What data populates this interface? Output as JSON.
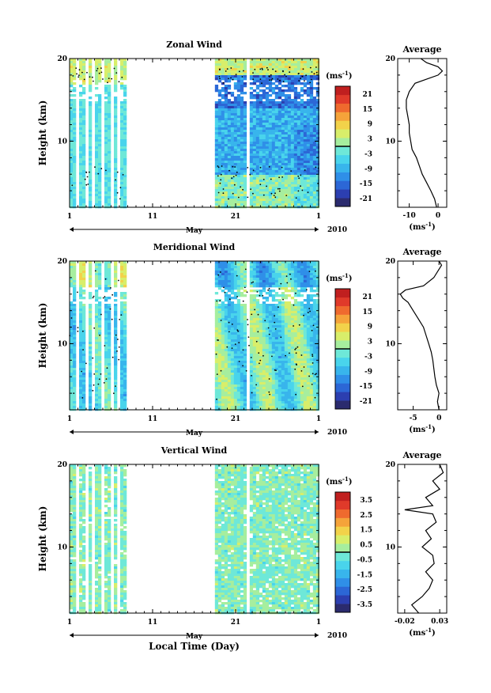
{
  "chart_data": [
    {
      "type": "heatmap",
      "title": "Zonal Wind",
      "ylabel": "Height (km)",
      "y_ticks": [
        "10",
        "20"
      ],
      "ylim": [
        2,
        20
      ],
      "x_ticks": [
        "1",
        "11",
        "21",
        "1"
      ],
      "x_label": "May",
      "year_label": "2010",
      "colorbar": {
        "unit": "(ms",
        "unit_exp": "-1",
        "unit_end": ")",
        "ticks": [
          "21",
          "15",
          "9",
          "3",
          "-3",
          "-9",
          "-15",
          "-21"
        ],
        "range": [
          -24,
          24
        ]
      },
      "sampled_periods_days": [
        [
          1,
          7.5
        ],
        [
          18.5,
          31
        ]
      ],
      "profile": {
        "title": "Average",
        "x_ticks": [
          "-10",
          "0"
        ],
        "xlim": [
          -14,
          3
        ],
        "unit": "(ms",
        "unit_exp": "-1",
        "unit_end": ")",
        "points": [
          [
            -0.5,
            2
          ],
          [
            -1.2,
            3
          ],
          [
            -2.5,
            4
          ],
          [
            -4,
            5
          ],
          [
            -5.5,
            6
          ],
          [
            -6.5,
            7
          ],
          [
            -7.5,
            8
          ],
          [
            -9,
            9
          ],
          [
            -9.5,
            10
          ],
          [
            -10,
            11
          ],
          [
            -10,
            12
          ],
          [
            -10.5,
            13
          ],
          [
            -11,
            14
          ],
          [
            -11,
            15
          ],
          [
            -10.5,
            15.5
          ],
          [
            -10,
            16
          ],
          [
            -8,
            17
          ],
          [
            -4,
            17.5
          ],
          [
            0,
            18
          ],
          [
            1.5,
            18.5
          ],
          [
            0,
            19
          ],
          [
            -4,
            19.5
          ],
          [
            -6,
            20
          ]
        ]
      }
    },
    {
      "type": "heatmap",
      "title": "Meridional Wind",
      "ylabel": "Height (km)",
      "y_ticks": [
        "10",
        "20"
      ],
      "ylim": [
        2,
        20
      ],
      "x_ticks": [
        "1",
        "11",
        "21",
        "1"
      ],
      "x_label": "May",
      "year_label": "2010",
      "colorbar": {
        "unit": "(ms",
        "unit_exp": "-1",
        "unit_end": ")",
        "ticks": [
          "21",
          "15",
          "9",
          "3",
          "-3",
          "-9",
          "-15",
          "-21"
        ],
        "range": [
          -24,
          24
        ]
      },
      "sampled_periods_days": [
        [
          1,
          7.5
        ],
        [
          18.5,
          31
        ]
      ],
      "profile": {
        "title": "Average",
        "x_ticks": [
          "-5",
          "0"
        ],
        "xlim": [
          -8,
          1.5
        ],
        "unit": "(ms",
        "unit_exp": "-1",
        "unit_end": ")",
        "points": [
          [
            0,
            2
          ],
          [
            -0.3,
            3
          ],
          [
            0,
            4
          ],
          [
            -0.5,
            5
          ],
          [
            -0.8,
            6
          ],
          [
            -1,
            7
          ],
          [
            -1.2,
            8
          ],
          [
            -1.5,
            9
          ],
          [
            -2,
            10
          ],
          [
            -2.5,
            11
          ],
          [
            -3,
            12
          ],
          [
            -4,
            13
          ],
          [
            -5,
            14
          ],
          [
            -6,
            15
          ],
          [
            -7,
            15.5
          ],
          [
            -7.5,
            16
          ],
          [
            -6.5,
            16.5
          ],
          [
            -3,
            17
          ],
          [
            -1,
            18
          ],
          [
            0,
            19
          ],
          [
            0.5,
            19.5
          ],
          [
            0,
            20
          ]
        ]
      }
    },
    {
      "type": "heatmap",
      "title": "Vertical Wind",
      "ylabel": "Height (km)",
      "y_ticks": [
        "10",
        "20"
      ],
      "ylim": [
        2,
        20
      ],
      "x_ticks": [
        "1",
        "11",
        "21",
        "1"
      ],
      "x_label": "May",
      "year_label": "2010",
      "xlabel": "Local Time (Day)",
      "colorbar": {
        "unit": "(ms",
        "unit_exp": "-1",
        "unit_end": ")",
        "ticks": [
          "3.5",
          "2.5",
          "1.5",
          "0.5",
          "-0.5",
          "-1.5",
          "-2.5",
          "-3.5"
        ],
        "range": [
          -4,
          4
        ]
      },
      "sampled_periods_days": [
        [
          1,
          7.5
        ],
        [
          18.5,
          31
        ]
      ],
      "profile": {
        "title": "Average",
        "x_ticks": [
          "-0.02",
          "0.03"
        ],
        "xlim": [
          -0.03,
          0.04
        ],
        "unit": "(ms",
        "unit_exp": "-1",
        "unit_end": ")",
        "points": [
          [
            0,
            2
          ],
          [
            -0.01,
            3
          ],
          [
            0.005,
            4
          ],
          [
            0.015,
            5
          ],
          [
            0.02,
            6
          ],
          [
            0.01,
            7
          ],
          [
            0.022,
            8
          ],
          [
            0.02,
            9
          ],
          [
            0.005,
            10
          ],
          [
            0.018,
            11
          ],
          [
            0.01,
            12
          ],
          [
            0.025,
            13
          ],
          [
            0.02,
            14
          ],
          [
            -0.02,
            14.5
          ],
          [
            0.02,
            15
          ],
          [
            0.01,
            16
          ],
          [
            0.03,
            17
          ],
          [
            0.02,
            18
          ],
          [
            0.035,
            19
          ],
          [
            0.03,
            20
          ]
        ]
      }
    }
  ],
  "colors": {
    "scale": [
      "#2b2b6e",
      "#2c3fb0",
      "#2c67d6",
      "#2f8fe8",
      "#38b5ec",
      "#49d4ec",
      "#6ee8d8",
      "#a6ee9e",
      "#d8ee6a",
      "#f2d24a",
      "#f5a33a",
      "#ef6a2e",
      "#e03a2a",
      "#c01f1f"
    ]
  }
}
